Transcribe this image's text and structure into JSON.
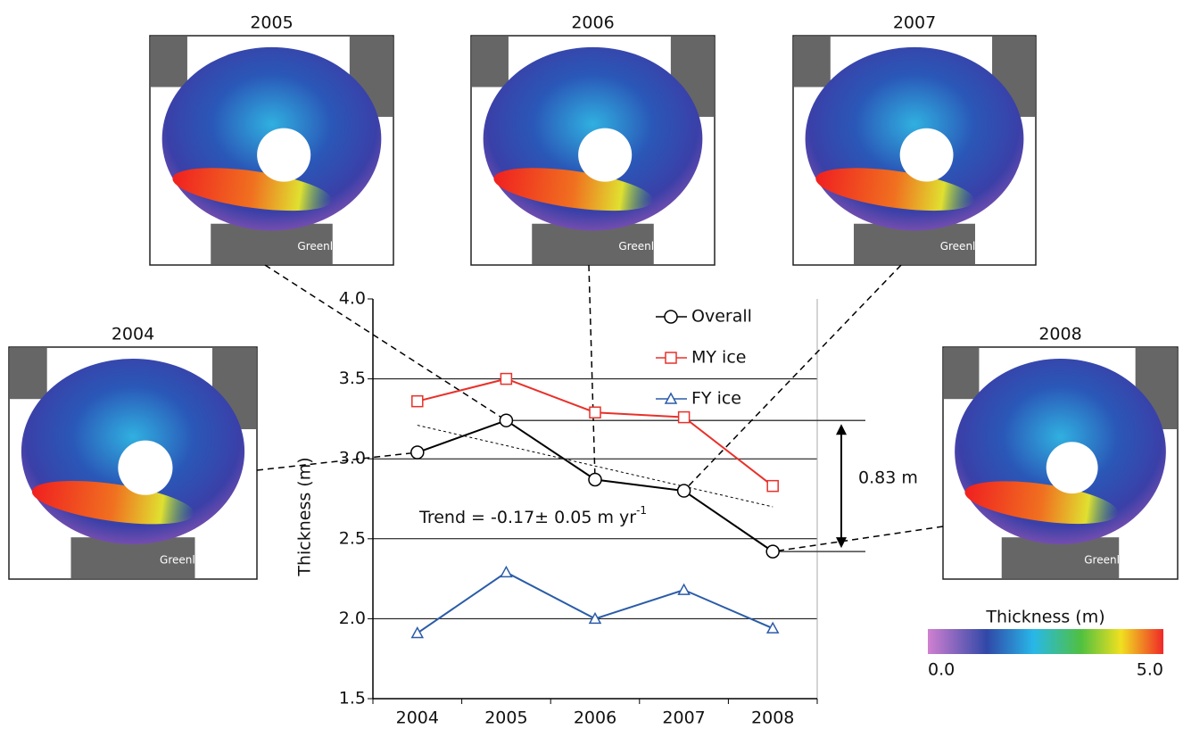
{
  "chart_data": {
    "type": "line",
    "ylabel": "Thickness (m)",
    "categories": [
      "2004",
      "2005",
      "2006",
      "2007",
      "2008"
    ],
    "series": [
      {
        "name": "Overall",
        "color": "#000000",
        "marker": "circle",
        "values": [
          3.04,
          3.24,
          2.87,
          2.8,
          2.42
        ]
      },
      {
        "name": "MY ice",
        "color": "#e8312a",
        "marker": "square",
        "values": [
          3.36,
          3.5,
          3.29,
          3.26,
          2.83
        ]
      },
      {
        "name": "FY ice",
        "color": "#2a5ca8",
        "marker": "triangle",
        "values": [
          1.91,
          2.29,
          2.0,
          2.18,
          1.94
        ]
      }
    ],
    "ylim": [
      1.5,
      4.0
    ],
    "yticks": [
      1.5,
      {
        "value": 2,
        "label": "2.0"
      },
      2.5,
      {
        "value": 3,
        "label": "3.0"
      },
      3.5,
      {
        "value": 4,
        "label": "4.0"
      }
    ],
    "grid": true,
    "trend": {
      "label": "Trend = -0.17± 0.05 m yr",
      "superscript": "-1",
      "values": [
        3.21,
        2.7
      ]
    },
    "difference": {
      "label": "0.83 m"
    }
  },
  "maps": [
    {
      "title": "2004",
      "label": "Greenland"
    },
    {
      "title": "2005",
      "label": "Greenland"
    },
    {
      "title": "2006",
      "label": "Greenland"
    },
    {
      "title": "2007",
      "label": "Greenland"
    },
    {
      "title": "2008",
      "label": "Greenland"
    }
  ],
  "colorbar": {
    "title": "Thickness (m)",
    "lim": [
      0,
      5
    ],
    "ticks": [
      {
        "value": 0,
        "label": "0.0"
      },
      {
        "value": 5,
        "label": "5.0"
      }
    ]
  }
}
